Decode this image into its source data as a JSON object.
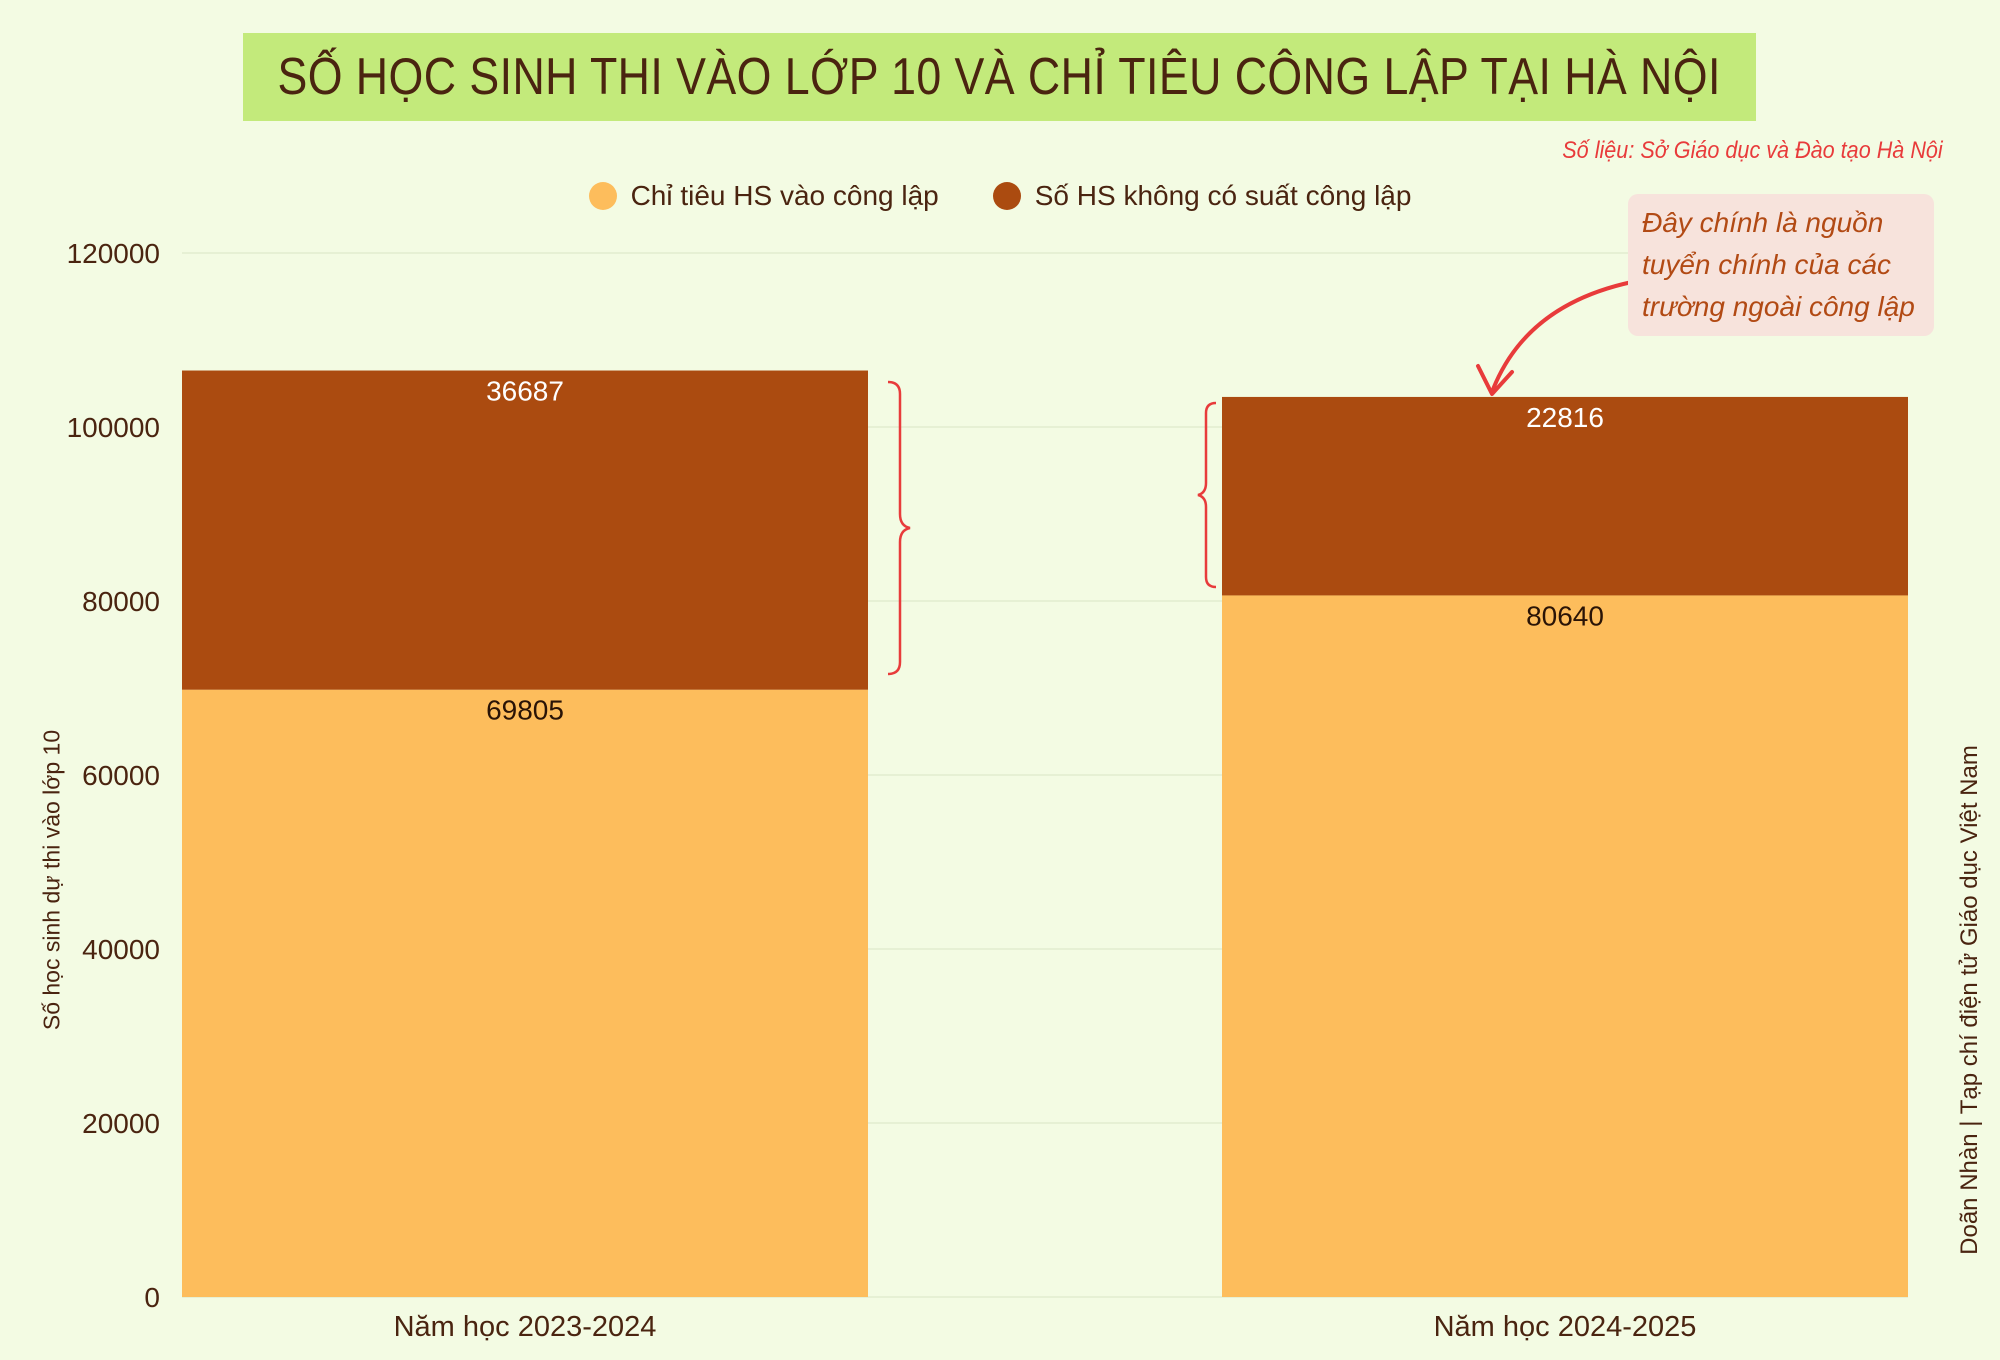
{
  "title": "SỐ HỌC SINH THI VÀO LỚP 10 VÀ CHỈ TIÊU CÔNG LẬP TẠI HÀ NỘI",
  "source": "Số liệu: Sở Giáo dục và Đào tạo Hà Nội",
  "annotation": "Đây chính là nguồn tuyển chính của các trường ngoài công lập",
  "credit": "Doãn Nhàn | Tạp chí điện tử Giáo dục Việt Nam",
  "colors": {
    "background": "#f3fbe3",
    "title_bg": "#c3ea7b",
    "quota": "#fdbd5c",
    "no_seat": "#ab4b10",
    "accent": "#e83b3b"
  },
  "chart_data": {
    "type": "bar",
    "stacked": true,
    "categories": [
      "Năm học 2023-2024",
      "Năm học 2024-2025"
    ],
    "series": [
      {
        "name": "Chỉ tiêu HS vào công lập",
        "values": [
          69805,
          80640
        ],
        "color": "#fdbd5c"
      },
      {
        "name": "Số HS không có suất công lập",
        "values": [
          36687,
          22816
        ],
        "color": "#ab4b10"
      }
    ],
    "ylabel": "Số học sinh dự thi vào lớp 10",
    "ylim": [
      0,
      120000
    ],
    "yticks": [
      0,
      20000,
      40000,
      60000,
      80000,
      100000,
      120000
    ],
    "grid": true,
    "legend": "top-center"
  }
}
